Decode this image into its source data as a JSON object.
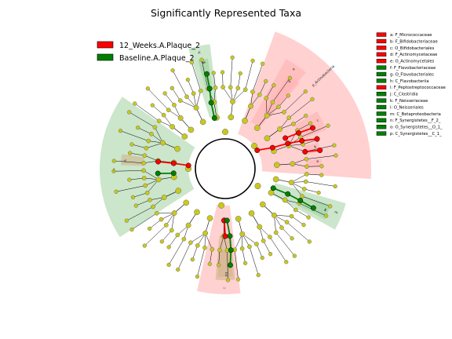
{
  "chart_data": {
    "type": "cladogram",
    "title": "Significantly Represented Taxa",
    "groups": [
      {
        "name": "12_Weeks.A.Plaque_2",
        "color": "#ff0000"
      },
      {
        "name": "Baseline.A.Plaque_2",
        "color": "#008000"
      }
    ],
    "taxa_legend": [
      {
        "label": "a: F_Micrococcaceae",
        "group": "12_Weeks.A.Plaque_2"
      },
      {
        "label": "b: F_Bifidobacteriaceae",
        "group": "12_Weeks.A.Plaque_2"
      },
      {
        "label": "c: O_Bifidobacteriales",
        "group": "12_Weeks.A.Plaque_2"
      },
      {
        "label": "d: F_Actinomycetaceae",
        "group": "12_Weeks.A.Plaque_2"
      },
      {
        "label": "e: O_Actinomycetales",
        "group": "12_Weeks.A.Plaque_2"
      },
      {
        "label": "f: F_Flavobacteriaceae",
        "group": "Baseline.A.Plaque_2"
      },
      {
        "label": "g: O_Flavobacteriales",
        "group": "Baseline.A.Plaque_2"
      },
      {
        "label": "h: C_Flavobacteriia",
        "group": "Baseline.A.Plaque_2"
      },
      {
        "label": "i: F_Peptostreptococcaceae",
        "group": "12_Weeks.A.Plaque_2"
      },
      {
        "label": "j: C_Clostridia",
        "group": "Baseline.A.Plaque_2"
      },
      {
        "label": "k: F_Neisseriaceae",
        "group": "Baseline.A.Plaque_2"
      },
      {
        "label": "l: O_Neisseriales",
        "group": "Baseline.A.Plaque_2"
      },
      {
        "label": "m: C_Betaproteobacteria",
        "group": "Baseline.A.Plaque_2"
      },
      {
        "label": "n: F_Synergistetes__F_2_",
        "group": "Baseline.A.Plaque_2"
      },
      {
        "label": "o: O_Synergistetes__O_1_",
        "group": "Baseline.A.Plaque_2"
      },
      {
        "label": "p: C_Synergistetes__C_1_",
        "group": "Baseline.A.Plaque_2"
      }
    ],
    "clade_labels": [
      {
        "text": "p_Actinobacteria",
        "group": "12_Weeks.A.Plaque_2"
      },
      {
        "text": "h",
        "group": "Baseline.A.Plaque_2"
      },
      {
        "text": "g",
        "group": "Baseline.A.Plaque_2"
      },
      {
        "text": "f",
        "group": "Baseline.A.Plaque_2"
      },
      {
        "text": "e",
        "group": "12_Weeks.A.Plaque_2"
      },
      {
        "text": "d",
        "group": "12_Weeks.A.Plaque_2"
      },
      {
        "text": "c",
        "group": "12_Weeks.A.Plaque_2"
      },
      {
        "text": "b",
        "group": "12_Weeks.A.Plaque_2"
      },
      {
        "text": "a",
        "group": "12_Weeks.A.Plaque_2"
      },
      {
        "text": "m",
        "group": "Baseline.A.Plaque_2"
      },
      {
        "text": "l",
        "group": "Baseline.A.Plaque_2"
      },
      {
        "text": "k",
        "group": "Baseline.A.Plaque_2"
      },
      {
        "text": "i",
        "group": "12_Weeks.A.Plaque_2"
      },
      {
        "text": "j",
        "group": "Baseline.A.Plaque_2"
      },
      {
        "text": "p",
        "group": "Baseline.A.Plaque_2"
      },
      {
        "text": "o",
        "group": "Baseline.A.Plaque_2"
      },
      {
        "text": "n",
        "group": "Baseline.A.Plaque_2"
      }
    ],
    "colors": {
      "enriched_12wk": "#ff0000",
      "enriched_baseline": "#008000",
      "not_significant": "#c8c81e",
      "shade_12wk": "#ffb3b3",
      "shade_baseline": "#a8d5a8",
      "shade_other": "#d2b48c"
    }
  }
}
